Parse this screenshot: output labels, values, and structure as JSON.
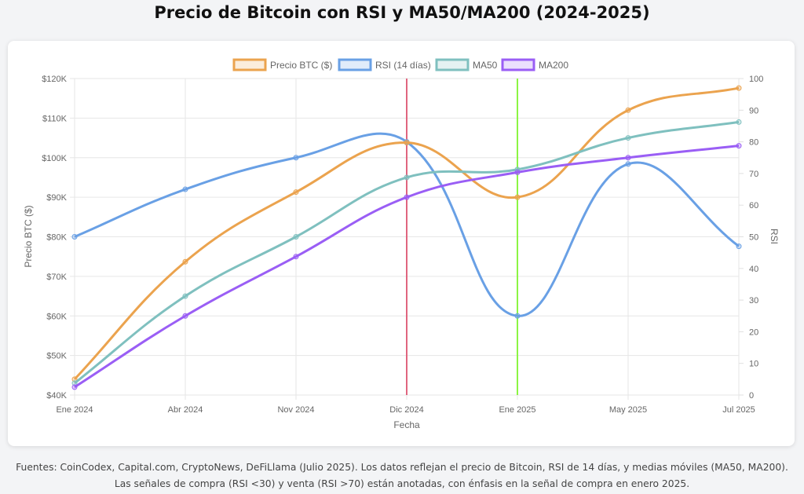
{
  "title": "Precio de Bitcoin con RSI y MA50/MA200 (2024-2025)",
  "footer": "Fuentes: CoinCodex, Capital.com, CryptoNews, DeFiLlama (Julio 2025). Los datos reflejan el precio de Bitcoin, RSI de 14 días, y medias móviles (MA50, MA200). Las señales de compra (RSI <30) y venta (RSI >70) están anotadas, con énfasis en la señal de compra en enero 2025.",
  "chart_data": {
    "type": "line",
    "categories": [
      "Ene 2024",
      "Abr 2024",
      "Nov 2024",
      "Dic 2024",
      "Ene 2025",
      "May 2025",
      "Jul 2025"
    ],
    "xlabel": "Fecha",
    "ylabel_left": "Precio BTC ($)",
    "ylabel_right": "RSI",
    "ylim_left": [
      40000,
      120000
    ],
    "ylim_right": [
      0,
      100
    ],
    "yticks_left": [
      "$40K",
      "$50K",
      "$60K",
      "$70K",
      "$80K",
      "$90K",
      "$100K",
      "$110K",
      "$120K"
    ],
    "yticks_right": [
      "0",
      "10",
      "20",
      "30",
      "40",
      "50",
      "60",
      "70",
      "80",
      "90",
      "100"
    ],
    "grid": true,
    "legend_position": "top",
    "series": [
      {
        "name": "Precio BTC ($)",
        "axis": "left",
        "color": "#eba34e",
        "values": [
          44000,
          73700,
          91300,
          103800,
          90000,
          112000,
          117600
        ]
      },
      {
        "name": "RSI (14 días)",
        "axis": "right",
        "color": "#69a0e5",
        "values": [
          50,
          65,
          75,
          80,
          25,
          73,
          47
        ]
      },
      {
        "name": "MA50",
        "axis": "left",
        "color": "#7fc0bf",
        "values": [
          43000,
          65000,
          80000,
          95000,
          97000,
          105000,
          109000
        ]
      },
      {
        "name": "MA200",
        "axis": "left",
        "color": "#9a5ef5",
        "values": [
          42000,
          60000,
          75000,
          90000,
          96300,
          100000,
          103000
        ]
      }
    ],
    "annotations": [
      {
        "type": "vertical-line",
        "at": "Dic 2024",
        "color": "#e0657f"
      },
      {
        "type": "vertical-line",
        "at": "Ene 2025",
        "color": "#8cf543"
      }
    ]
  }
}
